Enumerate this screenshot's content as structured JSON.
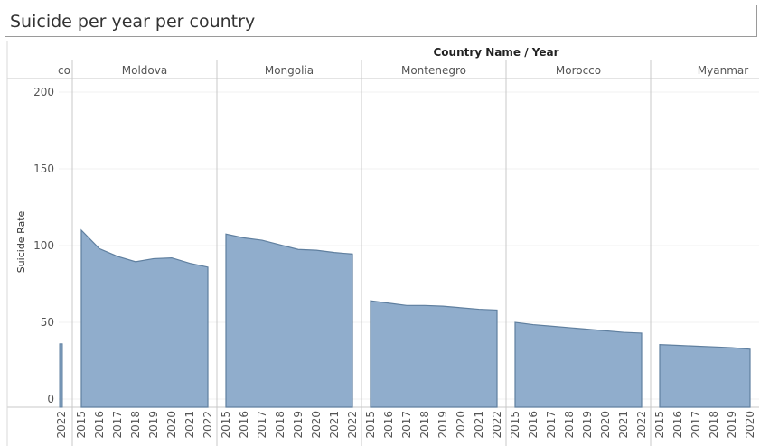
{
  "title": "Suicide per year per country",
  "chart_data": {
    "type": "area",
    "title": "Suicide per year per country",
    "column_header": "Country Name  /  Year",
    "ylabel": "Suicide Rate",
    "ylim": [
      0,
      210
    ],
    "yticks": [
      0,
      50,
      100,
      150,
      200
    ],
    "color": "#8aa9c9",
    "stroke": "#5f7f9f",
    "panels": [
      {
        "name": "co",
        "years": [
          "2022"
        ],
        "values": [
          36
        ]
      },
      {
        "name": "Moldova",
        "years": [
          "2015",
          "2016",
          "2017",
          "2018",
          "2019",
          "2020",
          "2021",
          "2022"
        ],
        "values": [
          110,
          98,
          93,
          89.5,
          91.5,
          92,
          88.5,
          86
        ]
      },
      {
        "name": "Mongolia",
        "years": [
          "2015",
          "2016",
          "2017",
          "2018",
          "2019",
          "2020",
          "2021",
          "2022"
        ],
        "values": [
          107.5,
          105,
          103.5,
          100.5,
          97.5,
          97,
          95.5,
          94.5
        ]
      },
      {
        "name": "Montenegro",
        "years": [
          "2015",
          "2016",
          "2017",
          "2018",
          "2019",
          "2020",
          "2021",
          "2022"
        ],
        "values": [
          64,
          62.5,
          61,
          61,
          60.5,
          59.5,
          58.5,
          58
        ]
      },
      {
        "name": "Morocco",
        "years": [
          "2015",
          "2016",
          "2017",
          "2018",
          "2019",
          "2020",
          "2021",
          "2022"
        ],
        "values": [
          50,
          48.5,
          47.5,
          46.5,
          45.5,
          44.5,
          43.5,
          43
        ]
      },
      {
        "name": "Myanmar",
        "years": [
          "2015",
          "2016",
          "2017",
          "2018",
          "2019",
          "2020"
        ],
        "values": [
          35.5,
          35,
          34.5,
          34,
          33.5,
          32.5
        ]
      }
    ]
  }
}
